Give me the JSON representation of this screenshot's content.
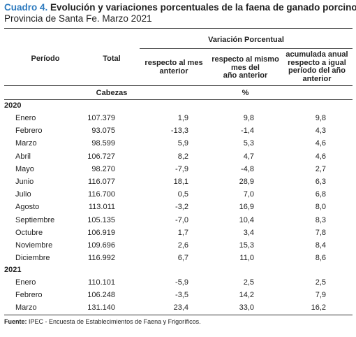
{
  "title": {
    "lead": "Cuadro 4.",
    "text": " Evolución y variaciones porcentuales de la faena de ganado porcino"
  },
  "subtitle": "Provincia de Santa Fe. Marzo 2021",
  "header": {
    "group": "Variación Porcentual",
    "periodo": "Período",
    "total": "Total",
    "col_mes_anterior": [
      "respecto al mes",
      "anterior"
    ],
    "col_mismo_mes": [
      "respecto al mismo",
      "mes del",
      "año anterior"
    ],
    "col_acumulada": [
      "acumulada anual",
      "respecto a igual",
      "período del año",
      "anterior"
    ],
    "unit_total": "Cabezas",
    "unit_pct": "%"
  },
  "years": [
    {
      "year": "2020",
      "rows": [
        [
          "Enero",
          "107.379",
          "1,9",
          "9,8",
          "9,8"
        ],
        [
          "Febrero",
          "93.075",
          "-13,3",
          "-1,4",
          "4,3"
        ],
        [
          "Marzo",
          "98.599",
          "5,9",
          "5,3",
          "4,6"
        ],
        [
          "Abril",
          "106.727",
          "8,2",
          "4,7",
          "4,6"
        ],
        [
          "Mayo",
          "98.270",
          "-7,9",
          "-4,8",
          "2,7"
        ],
        [
          "Junio",
          "116.077",
          "18,1",
          "28,9",
          "6,3"
        ],
        [
          "Julio",
          "116.700",
          "0,5",
          "7,0",
          "6,8"
        ],
        [
          "Agosto",
          "113.011",
          "-3,2",
          "16,9",
          "8,0"
        ],
        [
          "Septiembre",
          "105.135",
          "-7,0",
          "10,4",
          "8,3"
        ],
        [
          "Octubre",
          "106.919",
          "1,7",
          "3,4",
          "7,8"
        ],
        [
          "Noviembre",
          "109.696",
          "2,6",
          "15,3",
          "8,4"
        ],
        [
          "Diciembre",
          "116.992",
          "6,7",
          "11,0",
          "8,6"
        ]
      ]
    },
    {
      "year": "2021",
      "rows": [
        [
          "Enero",
          "110.101",
          "-5,9",
          "2,5",
          "2,5"
        ],
        [
          "Febrero",
          "106.248",
          "-3,5",
          "14,2",
          "7,9"
        ],
        [
          "Marzo",
          "131.140",
          "23,4",
          "33,0",
          "16,2"
        ]
      ]
    }
  ],
  "source": {
    "label": "Fuente:",
    "text": " IPEC - Encuesta de Establecimientos de Faena y Frigoríficos."
  },
  "colors": {
    "title_accent": "#2e7bbf",
    "text": "#222222",
    "rule": "#333333"
  }
}
